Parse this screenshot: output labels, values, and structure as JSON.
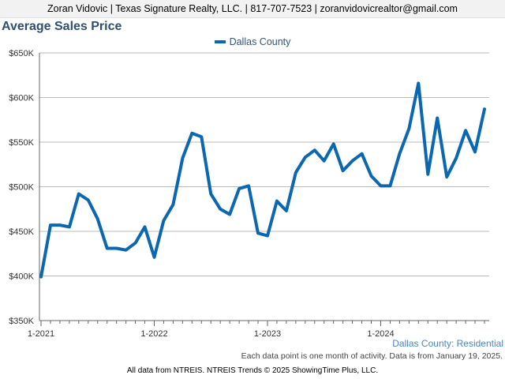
{
  "header": {
    "text": "Zoran Vidovic | Texas Signature Realty, LLC. | 817-707-7523 | zoranvidovicrealtor@gmail.com"
  },
  "footer": {
    "subtitle": "Dallas County: Residential",
    "note": "Each data point is one month of activity. Data is from January 19, 2025.",
    "credit": "All data from NTREIS. NTREIS Trends © 2025 ShowingTime Plus, LLC."
  },
  "chart_data": {
    "type": "line",
    "title": "Average Sales Price",
    "xlabel": "",
    "ylabel": "",
    "ylim": [
      350000,
      650000
    ],
    "yticks": [
      350000,
      400000,
      450000,
      500000,
      550000,
      600000,
      650000
    ],
    "ytick_labels": [
      "$350K",
      "$400K",
      "$450K",
      "$500K",
      "$550K",
      "$600K",
      "$650K"
    ],
    "xticks": [
      {
        "index": 0,
        "label": "1-2021"
      },
      {
        "index": 12,
        "label": "1-2022"
      },
      {
        "index": 24,
        "label": "1-2023"
      },
      {
        "index": 36,
        "label": "1-2024"
      }
    ],
    "x": [
      "2021-01",
      "2021-02",
      "2021-03",
      "2021-04",
      "2021-05",
      "2021-06",
      "2021-07",
      "2021-08",
      "2021-09",
      "2021-10",
      "2021-11",
      "2021-12",
      "2022-01",
      "2022-02",
      "2022-03",
      "2022-04",
      "2022-05",
      "2022-06",
      "2022-07",
      "2022-08",
      "2022-09",
      "2022-10",
      "2022-11",
      "2022-12",
      "2023-01",
      "2023-02",
      "2023-03",
      "2023-04",
      "2023-05",
      "2023-06",
      "2023-07",
      "2023-08",
      "2023-09",
      "2023-10",
      "2023-11",
      "2023-12",
      "2024-01",
      "2024-02",
      "2024-03",
      "2024-04",
      "2024-05",
      "2024-06",
      "2024-07",
      "2024-08",
      "2024-09",
      "2024-10",
      "2024-11",
      "2024-12"
    ],
    "legend_position": "top-center",
    "grid": true,
    "series": [
      {
        "name": "Dallas County",
        "color": "#0a67b0",
        "values": [
          399000,
          457000,
          457000,
          455000,
          492000,
          485000,
          464000,
          431000,
          431000,
          429000,
          437000,
          455000,
          421000,
          462000,
          480000,
          532000,
          560000,
          556000,
          492000,
          475000,
          469000,
          498000,
          501000,
          448000,
          445000,
          484000,
          473000,
          516000,
          533000,
          541000,
          529000,
          548000,
          518000,
          529000,
          537000,
          512000,
          501000,
          501000,
          537000,
          565000,
          616000,
          514000,
          577000,
          511000,
          532000,
          563000,
          539000,
          587000
        ]
      }
    ]
  }
}
